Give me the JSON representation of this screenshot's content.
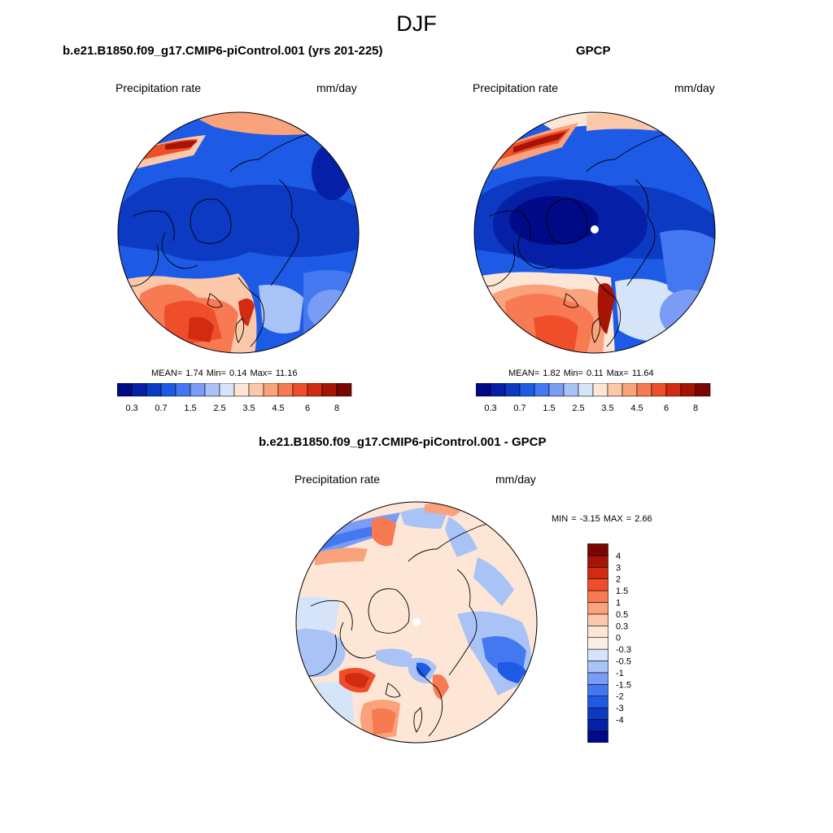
{
  "figure": {
    "title": "DJF"
  },
  "panels": [
    {
      "id": "model",
      "title": "b.e21.B1850.f09_g17.CMIP6-piControl.001 (yrs 201-225)",
      "variable": "Precipitation rate",
      "units": "mm/day",
      "stats": {
        "mean_label": "MEAN=",
        "mean": "1.74",
        "min_label": "Min=",
        "min": "0.14",
        "max_label": "Max=",
        "max": "11.16"
      }
    },
    {
      "id": "obs",
      "title": "GPCP",
      "variable": "Precipitation rate",
      "units": "mm/day",
      "stats": {
        "mean_label": "MEAN=",
        "mean": "1.82",
        "min_label": "Min=",
        "min": "0.11",
        "max_label": "Max=",
        "max": "11.64"
      }
    },
    {
      "id": "diff",
      "title": "b.e21.B1850.f09_g17.CMIP6-piControl.001 - GPCP",
      "variable": "Precipitation rate",
      "units": "mm/day",
      "stats": {
        "min_label": "MIN =",
        "min": "-3.15",
        "max_label": "MAX =",
        "max": "2.66"
      }
    }
  ],
  "colorbar_abs": {
    "colors": [
      "#000a87",
      "#0520a6",
      "#0d3ac3",
      "#1d5be6",
      "#4478f0",
      "#7b9cf4",
      "#a9c3f7",
      "#d6e4f9",
      "#fde6d6",
      "#fbc8aa",
      "#f9a27c",
      "#f77a52",
      "#f04d2a",
      "#d12b12",
      "#a61405",
      "#7a0602"
    ],
    "tick_labels": [
      "0.3",
      "0.7",
      "1.5",
      "2.5",
      "3.5",
      "4.5",
      "6",
      "8"
    ]
  },
  "colorbar_diff": {
    "colors": [
      "#000a87",
      "#0520a6",
      "#0d3ac3",
      "#1d5be6",
      "#4478f0",
      "#7b9cf4",
      "#a9c3f7",
      "#d6e4f9",
      "#fbeee6",
      "#fde6d6",
      "#fbc8aa",
      "#f9a27c",
      "#f77a52",
      "#f04d2a",
      "#d12b12",
      "#a61405",
      "#7a0602"
    ],
    "tick_labels": [
      "4",
      "3",
      "2",
      "1.5",
      "1",
      "0.5",
      "0.3",
      "0",
      "-0.3",
      "-0.5",
      "-1",
      "-1.5",
      "-2",
      "-3",
      "-4"
    ]
  },
  "chart_data": {
    "type": "heatmap",
    "title": "DJF",
    "projection": "north polar stereographic",
    "season": "DJF",
    "variable": "Precipitation rate",
    "units": "mm/day",
    "abs_levels": [
      0.2,
      0.3,
      0.5,
      0.7,
      1,
      1.5,
      2,
      2.5,
      3,
      3.5,
      4,
      4.5,
      5,
      6,
      7,
      8
    ],
    "diff_levels": [
      -4,
      -3,
      -2,
      -1.5,
      -1,
      -0.5,
      -0.3,
      0,
      0.3,
      0.5,
      1,
      1.5,
      2,
      3,
      4
    ],
    "model": {
      "mean": 1.74,
      "min": 0.14,
      "max": 11.16
    },
    "obs": {
      "mean": 1.82,
      "min": 0.11,
      "max": 11.64
    },
    "difference": {
      "min": -3.15,
      "max": 2.66
    }
  }
}
